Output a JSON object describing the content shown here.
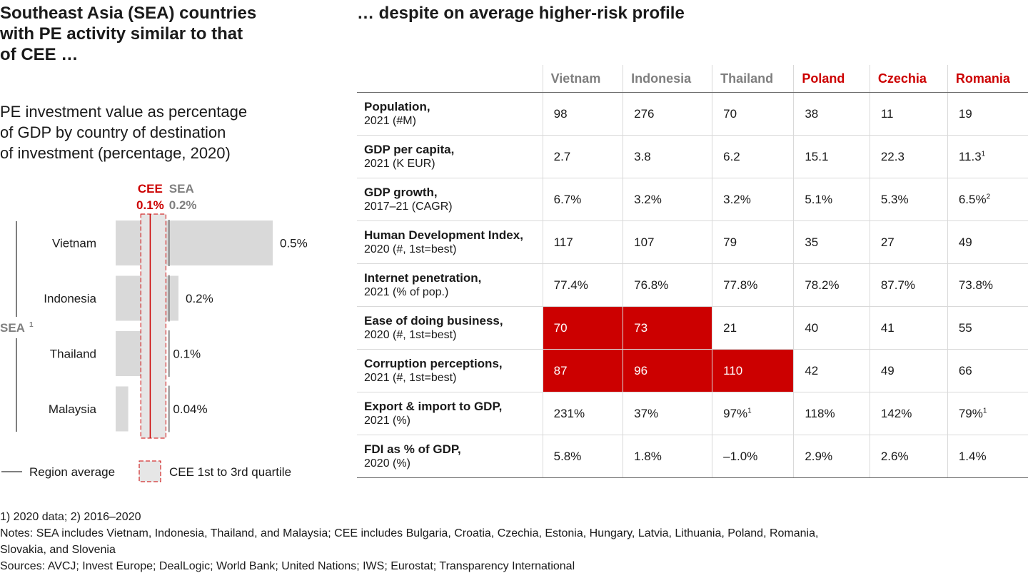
{
  "left_title": [
    "Southeast Asia (SEA) countries",
    "with PE activity similar to that",
    "of CEE …"
  ],
  "right_title": "… despite on average higher-risk profile",
  "chart_subtitle": [
    "PE investment value as percentage",
    "of GDP by country of destination",
    "of investment (percentage, 2020)"
  ],
  "colors": {
    "cee": "#cc0000",
    "sea": "#7f7f7f",
    "bar": "#d9d9d9",
    "highlight": "#cc0000"
  },
  "chart_data": {
    "type": "bar",
    "orientation": "horizontal",
    "group_label": "SEA",
    "group_sup": "1",
    "categories": [
      "Vietnam",
      "Indonesia",
      "Thailand",
      "Malaysia"
    ],
    "values": [
      0.5,
      0.2,
      0.1,
      0.04
    ],
    "value_labels": [
      "0.5%",
      "0.2%",
      "0.1%",
      "0.04%"
    ],
    "cee_avg": {
      "name": "CEE",
      "label": "0.1%",
      "value": 0.11
    },
    "sea_avg": {
      "name": "SEA",
      "label": "0.2%",
      "value": 0.17
    },
    "cee_quartile_range": [
      0.08,
      0.16
    ],
    "xlim": [
      0,
      0.5
    ],
    "legend": {
      "line_label": "Region average",
      "box_label": "CEE 1st to 3rd quartile"
    }
  },
  "table": {
    "columns": [
      {
        "name": "Vietnam",
        "group": "SEA"
      },
      {
        "name": "Indonesia",
        "group": "SEA"
      },
      {
        "name": "Thailand",
        "group": "SEA"
      },
      {
        "name": "Poland",
        "group": "CEE"
      },
      {
        "name": "Czechia",
        "group": "CEE"
      },
      {
        "name": "Romania",
        "group": "CEE"
      }
    ],
    "rows": [
      {
        "label": "Population,",
        "sublabel": "2021 (#M)",
        "cells": [
          {
            "v": "98"
          },
          {
            "v": "276"
          },
          {
            "v": "70"
          },
          {
            "v": "38"
          },
          {
            "v": "11"
          },
          {
            "v": "19"
          }
        ]
      },
      {
        "label": "GDP per capita,",
        "sublabel": "2021 (K EUR)",
        "cells": [
          {
            "v": "2.7"
          },
          {
            "v": "3.8"
          },
          {
            "v": "6.2"
          },
          {
            "v": "15.1"
          },
          {
            "v": "22.3"
          },
          {
            "v": "11.3",
            "sup": "1"
          }
        ]
      },
      {
        "label": "GDP growth,",
        "sublabel": "2017–21 (CAGR)",
        "cells": [
          {
            "v": "6.7%"
          },
          {
            "v": "3.2%"
          },
          {
            "v": "3.2%"
          },
          {
            "v": "5.1%"
          },
          {
            "v": "5.3%"
          },
          {
            "v": "6.5%",
            "sup": "2"
          }
        ]
      },
      {
        "label": "Human Development Index,",
        "sublabel": "2020 (#, 1st=best)",
        "cells": [
          {
            "v": "117"
          },
          {
            "v": "107"
          },
          {
            "v": "79"
          },
          {
            "v": "35"
          },
          {
            "v": "27"
          },
          {
            "v": "49"
          }
        ]
      },
      {
        "label": "Internet penetration,",
        "sublabel": "2021 (% of pop.)",
        "cells": [
          {
            "v": "77.4%"
          },
          {
            "v": "76.8%"
          },
          {
            "v": "77.8%"
          },
          {
            "v": "78.2%"
          },
          {
            "v": "87.7%"
          },
          {
            "v": "73.8%"
          }
        ]
      },
      {
        "label": "Ease of doing business,",
        "sublabel": "2020 (#, 1st=best)",
        "cells": [
          {
            "v": "70",
            "hl": true
          },
          {
            "v": "73",
            "hl": true
          },
          {
            "v": "21"
          },
          {
            "v": "40"
          },
          {
            "v": "41"
          },
          {
            "v": "55"
          }
        ]
      },
      {
        "label": "Corruption perceptions,",
        "sublabel": "2021 (#, 1st=best)",
        "cells": [
          {
            "v": "87",
            "hl": true
          },
          {
            "v": "96",
            "hl": true
          },
          {
            "v": "110",
            "hl": true
          },
          {
            "v": "42"
          },
          {
            "v": "49"
          },
          {
            "v": "66"
          }
        ]
      },
      {
        "label": "Export & import to GDP,",
        "sublabel": "2021 (%)",
        "cells": [
          {
            "v": "231%"
          },
          {
            "v": "37%"
          },
          {
            "v": "97%",
            "sup": "1"
          },
          {
            "v": "118%"
          },
          {
            "v": "142%"
          },
          {
            "v": "79%",
            "sup": "1"
          }
        ]
      },
      {
        "label": "FDI as % of GDP,",
        "sublabel": "2020 (%)",
        "cells": [
          {
            "v": "5.8%"
          },
          {
            "v": "1.8%"
          },
          {
            "v": "–1.0%"
          },
          {
            "v": "2.9%"
          },
          {
            "v": "2.6%"
          },
          {
            "v": "1.4%"
          }
        ]
      }
    ]
  },
  "footnotes": {
    "notes1": "1) 2020 data; 2) 2016–2020",
    "notes2": "Notes: SEA includes Vietnam, Indonesia, Thailand, and Malaysia; CEE includes Bulgaria, Croatia, Czechia, Estonia, Hungary, Latvia, Lithuania, Poland, Romania,",
    "notes3": "Slovakia, and Slovenia",
    "sources": "Sources: AVCJ; Invest Europe; DealLogic; World Bank; United Nations; IWS; Eurostat; Transparency International"
  }
}
